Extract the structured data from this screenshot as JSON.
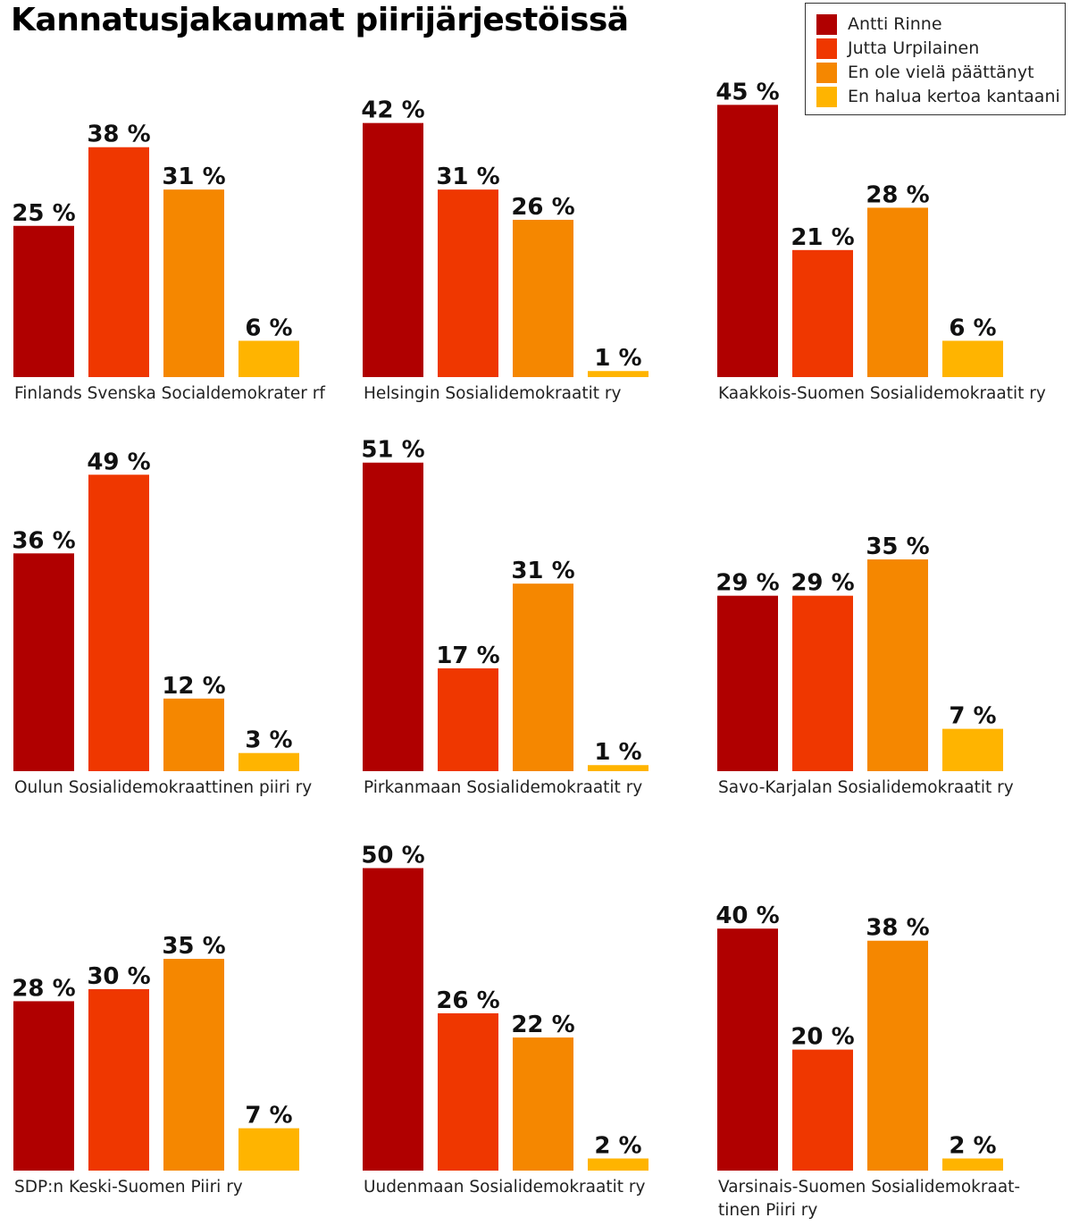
{
  "title": "Kannatusjakaumat piirijärjestöissä",
  "legend": [
    {
      "label": "Antti Rinne",
      "color": "#b00000"
    },
    {
      "label": "Jutta Urpilainen",
      "color": "#ef3700"
    },
    {
      "label": "En ole vielä päättänyt",
      "color": "#f58700"
    },
    {
      "label": "En halua kertoa kantaani",
      "color": "#ffb400"
    }
  ],
  "chart_data": [
    {
      "type": "bar",
      "title": "Finlands Svenska Socialdemokrater rf",
      "title_lines": [
        "Finlands Svenska Socialdemokrater rf"
      ],
      "categories": [
        "Antti Rinne",
        "Jutta Urpilainen",
        "En ole vielä päättänyt",
        "En halua kertoa kantaani"
      ],
      "values": [
        25,
        38,
        31,
        6
      ],
      "labels": [
        "25 %",
        "38 %",
        "31 %",
        "6 %"
      ],
      "ylim": [
        0,
        100
      ]
    },
    {
      "type": "bar",
      "title": "Helsingin Sosialidemokraatit ry",
      "title_lines": [
        "Helsingin Sosialidemokraatit ry"
      ],
      "categories": [
        "Antti Rinne",
        "Jutta Urpilainen",
        "En ole vielä päättänyt",
        "En halua kertoa kantaani"
      ],
      "values": [
        42,
        31,
        26,
        1
      ],
      "labels": [
        "42 %",
        "31 %",
        "26 %",
        "1 %"
      ],
      "ylim": [
        0,
        100
      ]
    },
    {
      "type": "bar",
      "title": "Kaakkois-Suomen Sosialidemokraatit ry",
      "title_lines": [
        "Kaakkois-Suomen Sosialidemokraatit ry"
      ],
      "categories": [
        "Antti Rinne",
        "Jutta Urpilainen",
        "En ole vielä päättänyt",
        "En halua kertoa kantaani"
      ],
      "values": [
        45,
        21,
        28,
        6
      ],
      "labels": [
        "45 %",
        "21 %",
        "28 %",
        "6 %"
      ],
      "ylim": [
        0,
        100
      ]
    },
    {
      "type": "bar",
      "title": "Oulun Sosialidemokraattinen piiri ry",
      "title_lines": [
        "Oulun Sosialidemokraattinen piiri ry"
      ],
      "categories": [
        "Antti Rinne",
        "Jutta Urpilainen",
        "En ole vielä päättänyt",
        "En halua kertoa kantaani"
      ],
      "values": [
        36,
        49,
        12,
        3
      ],
      "labels": [
        "36 %",
        "49 %",
        "12 %",
        "3 %"
      ],
      "ylim": [
        0,
        100
      ]
    },
    {
      "type": "bar",
      "title": "Pirkanmaan Sosialidemokraatit ry",
      "title_lines": [
        "Pirkanmaan Sosialidemokraatit ry"
      ],
      "categories": [
        "Antti Rinne",
        "Jutta Urpilainen",
        "En ole vielä päättänyt",
        "En halua kertoa kantaani"
      ],
      "values": [
        51,
        17,
        31,
        1
      ],
      "labels": [
        "51 %",
        "17 %",
        "31 %",
        "1 %"
      ],
      "ylim": [
        0,
        100
      ]
    },
    {
      "type": "bar",
      "title": "Savo-Karjalan Sosialidemokraatit ry",
      "title_lines": [
        "Savo-Karjalan Sosialidemokraatit ry"
      ],
      "categories": [
        "Antti Rinne",
        "Jutta Urpilainen",
        "En ole vielä päättänyt",
        "En halua kertoa kantaani"
      ],
      "values": [
        29,
        29,
        35,
        7
      ],
      "labels": [
        "29 %",
        "29 %",
        "35 %",
        "7 %"
      ],
      "ylim": [
        0,
        100
      ]
    },
    {
      "type": "bar",
      "title": "SDP:n Keski-Suomen Piiri ry",
      "title_lines": [
        "SDP:n Keski-Suomen Piiri ry"
      ],
      "categories": [
        "Antti Rinne",
        "Jutta Urpilainen",
        "En ole vielä päättänyt",
        "En halua kertoa kantaani"
      ],
      "values": [
        28,
        30,
        35,
        7
      ],
      "labels": [
        "28 %",
        "30 %",
        "35 %",
        "7 %"
      ],
      "ylim": [
        0,
        100
      ]
    },
    {
      "type": "bar",
      "title": "Uudenmaan Sosialidemokraatit ry",
      "title_lines": [
        "Uudenmaan Sosialidemokraatit ry"
      ],
      "categories": [
        "Antti Rinne",
        "Jutta Urpilainen",
        "En ole vielä päättänyt",
        "En halua kertoa kantaani"
      ],
      "values": [
        50,
        26,
        22,
        2
      ],
      "labels": [
        "50 %",
        "26 %",
        "22 %",
        "2 %"
      ],
      "ylim": [
        0,
        100
      ]
    },
    {
      "type": "bar",
      "title": "Varsinais-Suomen Sosialidemokraat-tinen Piiri ry",
      "title_lines": [
        "Varsinais-Suomen Sosialidemokraat-",
        "tinen Piiri ry"
      ],
      "categories": [
        "Antti Rinne",
        "Jutta Urpilainen",
        "En ole vielä päättänyt",
        "En halua kertoa kantaani"
      ],
      "values": [
        40,
        20,
        38,
        2
      ],
      "labels": [
        "40 %",
        "20 %",
        "38 %",
        "2 %"
      ],
      "ylim": [
        0,
        100
      ]
    }
  ]
}
